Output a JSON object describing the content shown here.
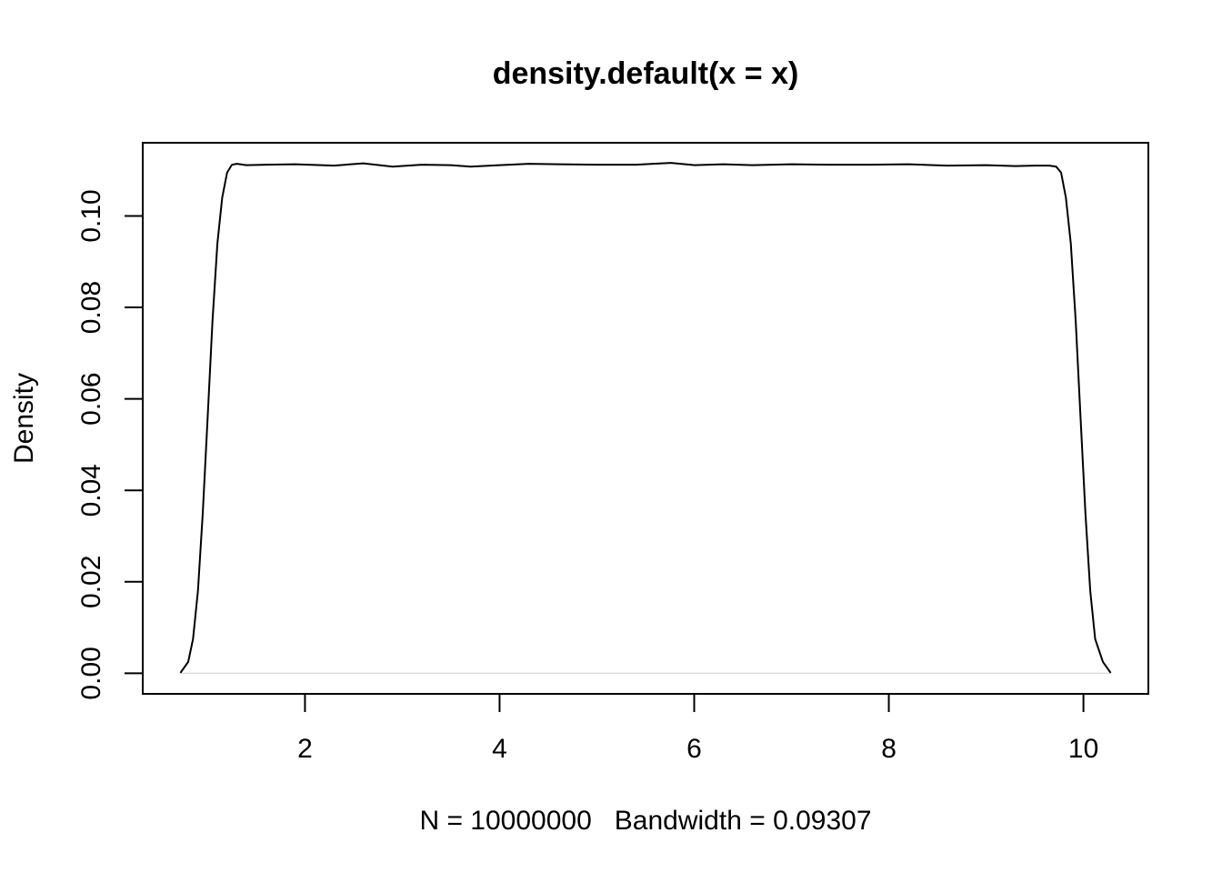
{
  "chart_data": {
    "type": "line",
    "title": "density.default(x = x)",
    "xlabel": "N = 10000000   Bandwidth = 0.09307",
    "ylabel": "Density",
    "xlim": [
      0.333,
      10.667
    ],
    "ylim": [
      -0.0045,
      0.116
    ],
    "x_ticks": [
      2,
      4,
      6,
      8,
      10
    ],
    "x_tick_labels": [
      "2",
      "4",
      "6",
      "8",
      "10"
    ],
    "y_ticks": [
      0,
      0.02,
      0.04,
      0.06,
      0.08,
      0.1
    ],
    "y_tick_labels": [
      "0.00",
      "0.02",
      "0.04",
      "0.06",
      "0.08",
      "0.10"
    ],
    "grid": false,
    "zero_line": true,
    "series": [
      {
        "x": [
          0.72,
          0.8,
          0.85,
          0.9,
          0.95,
          1.0,
          1.05,
          1.1,
          1.15,
          1.2,
          1.25,
          1.3,
          1.4,
          1.6,
          1.9,
          2.3,
          2.6,
          2.9,
          3.2,
          3.5,
          3.7,
          4.0,
          4.3,
          4.6,
          5.0,
          5.4,
          5.76,
          6.0,
          6.3,
          6.6,
          7.0,
          7.4,
          7.8,
          8.2,
          8.6,
          9.0,
          9.3,
          9.5,
          9.65,
          9.72,
          9.77,
          9.82,
          9.87,
          9.92,
          9.97,
          10.02,
          10.07,
          10.12,
          10.2,
          10.28
        ],
        "y": [
          0.0001,
          0.0025,
          0.0075,
          0.018,
          0.035,
          0.056,
          0.077,
          0.094,
          0.104,
          0.1095,
          0.1112,
          0.1114,
          0.1111,
          0.1112,
          0.1113,
          0.111,
          0.1115,
          0.1108,
          0.1112,
          0.1111,
          0.1108,
          0.1111,
          0.1114,
          0.1113,
          0.1112,
          0.1112,
          0.1116,
          0.1111,
          0.1113,
          0.1111,
          0.1113,
          0.1112,
          0.1112,
          0.1113,
          0.111,
          0.1111,
          0.1109,
          0.111,
          0.111,
          0.1108,
          0.1095,
          0.104,
          0.094,
          0.077,
          0.056,
          0.035,
          0.018,
          0.0075,
          0.0025,
          0.0001
        ]
      }
    ],
    "line_color": "#000000"
  }
}
